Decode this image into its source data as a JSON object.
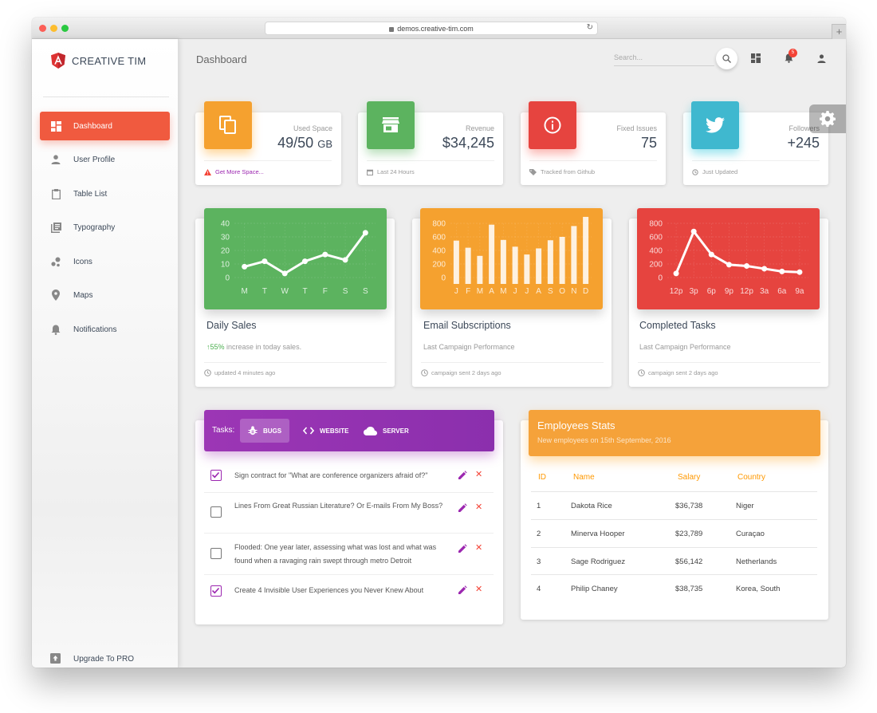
{
  "browser": {
    "url": "demos.creative-tim.com",
    "new_tab": "+"
  },
  "brand": {
    "name": "CREATIVE TIM"
  },
  "sidebar": {
    "items": [
      {
        "label": "Dashboard",
        "icon": "dashboard-icon"
      },
      {
        "label": "User Profile",
        "icon": "person-icon"
      },
      {
        "label": "Table List",
        "icon": "clipboard-icon"
      },
      {
        "label": "Typography",
        "icon": "library-books-icon"
      },
      {
        "label": "Icons",
        "icon": "bubble-chart-icon"
      },
      {
        "label": "Maps",
        "icon": "location-pin-icon"
      },
      {
        "label": "Notifications",
        "icon": "bell-icon"
      }
    ],
    "upgrade_label": "Upgrade To PRO"
  },
  "header": {
    "title": "Dashboard",
    "search_placeholder": "Search...",
    "notification_count": "5"
  },
  "stats": [
    {
      "category": "Used Space",
      "value": "49/50",
      "unit": "GB",
      "footer": "Get More Space...",
      "color": "#f5a12f",
      "icon": "content-copy-icon",
      "footer_icon": "warning-icon"
    },
    {
      "category": "Revenue",
      "value": "$34,245",
      "footer": "Last 24 Hours",
      "color": "#5cb35f",
      "icon": "store-icon",
      "footer_icon": "calendar-icon"
    },
    {
      "category": "Fixed Issues",
      "value": "75",
      "footer": "Tracked from Github",
      "color": "#e6443f",
      "icon": "info-icon",
      "footer_icon": "tag-icon"
    },
    {
      "category": "Followers",
      "value": "+245",
      "footer": "Just Updated",
      "color": "#3fb8cf",
      "icon": "twitter-icon",
      "footer_icon": "update-icon"
    }
  ],
  "charts": [
    {
      "title": "Daily Sales",
      "category_prefix": "55%",
      "category": " increase in today sales.",
      "footer": "updated 4 minutes ago",
      "color": "#5cb35f"
    },
    {
      "title": "Email Subscriptions",
      "category": "Last Campaign Performance",
      "footer": "campaign sent 2 days ago",
      "color": "#f5a12f"
    },
    {
      "title": "Completed Tasks",
      "category": "Last Campaign Performance",
      "footer": "campaign sent 2 days ago",
      "color": "#e6443f"
    }
  ],
  "chart_data": [
    {
      "type": "line",
      "categories": [
        "M",
        "T",
        "W",
        "T",
        "F",
        "S",
        "S"
      ],
      "values": [
        8,
        12,
        3,
        12,
        17,
        13,
        33
      ],
      "ylim": [
        0,
        40
      ],
      "yticks": [
        0,
        10,
        20,
        30,
        40
      ]
    },
    {
      "type": "bar",
      "categories": [
        "J",
        "F",
        "M",
        "A",
        "M",
        "J",
        "J",
        "A",
        "S",
        "O",
        "N",
        "D"
      ],
      "values": [
        545,
        440,
        320,
        780,
        555,
        455,
        340,
        430,
        550,
        600,
        760,
        895
      ],
      "ylim": [
        0,
        800
      ],
      "yticks": [
        0,
        200,
        400,
        600,
        800
      ]
    },
    {
      "type": "line",
      "categories": [
        "12p",
        "3p",
        "6p",
        "9p",
        "12p",
        "3a",
        "6a",
        "9a"
      ],
      "values": [
        60,
        680,
        340,
        190,
        170,
        130,
        90,
        80
      ],
      "ylim": [
        0,
        800
      ],
      "yticks": [
        0,
        200,
        400,
        600,
        800
      ]
    }
  ],
  "tasks": {
    "label": "Tasks:",
    "tabs": [
      {
        "label": "BUGS",
        "icon": "bug-icon"
      },
      {
        "label": "WEBSITE",
        "icon": "code-icon"
      },
      {
        "label": "SERVER",
        "icon": "cloud-icon"
      }
    ],
    "items": [
      {
        "text": "Sign contract for \"What are conference organizers afraid of?\"",
        "checked": true
      },
      {
        "text": "Lines From Great Russian Literature? Or E-mails From My Boss?",
        "checked": false
      },
      {
        "text": "Flooded: One year later, assessing what was lost and what was found when a ravaging rain swept through metro Detroit",
        "checked": false
      },
      {
        "text": "Create 4 Invisible User Experiences you Never Knew About",
        "checked": true
      }
    ]
  },
  "employees": {
    "title": "Employees Stats",
    "subtitle": "New employees on 15th September, 2016",
    "columns": [
      "ID",
      "Name",
      "Salary",
      "Country"
    ],
    "rows": [
      [
        "1",
        "Dakota Rice",
        "$36,738",
        "Niger"
      ],
      [
        "2",
        "Minerva Hooper",
        "$23,789",
        "Curaçao"
      ],
      [
        "3",
        "Sage Rodriguez",
        "$56,142",
        "Netherlands"
      ],
      [
        "4",
        "Philip Chaney",
        "$38,735",
        "Korea, South"
      ]
    ]
  }
}
